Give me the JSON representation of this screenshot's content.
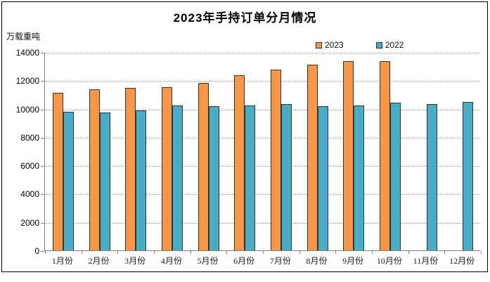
{
  "window": {
    "background": "#ffffff",
    "frame_border_color": "#000000"
  },
  "chart_data": {
    "type": "bar",
    "title": "2023年手持订单分月情况",
    "unit_label": "万载重吨",
    "xlabel": "",
    "ylabel": "万载重吨",
    "categories": [
      "1月份",
      "2月份",
      "3月份",
      "4月份",
      "5月份",
      "6月份",
      "7月份",
      "8月份",
      "9月份",
      "10月份",
      "11月份",
      "12月份"
    ],
    "series": [
      {
        "name": "2023",
        "color": "#F79646",
        "values": [
          11100,
          11370,
          11450,
          11500,
          11800,
          12380,
          12750,
          13130,
          13340,
          13340,
          null,
          null
        ]
      },
      {
        "name": "2022",
        "color": "#4BACC6",
        "values": [
          9800,
          9750,
          9890,
          10230,
          10180,
          10240,
          10340,
          10190,
          10220,
          10420,
          10330,
          10500
        ]
      }
    ],
    "ylim": [
      0,
      14000
    ],
    "ytick_step": 2000,
    "yticks": [
      0,
      2000,
      4000,
      6000,
      8000,
      10000,
      12000,
      14000
    ],
    "grid": "horizontal-dotted",
    "legend_position": "top-right",
    "bar_outline_color": "#333333",
    "gridline_color": "#999999",
    "axis_color": "#808080"
  },
  "legend": {
    "items": [
      {
        "label": "2023",
        "color": "#F79646"
      },
      {
        "label": "2022",
        "color": "#4BACC6"
      }
    ]
  }
}
